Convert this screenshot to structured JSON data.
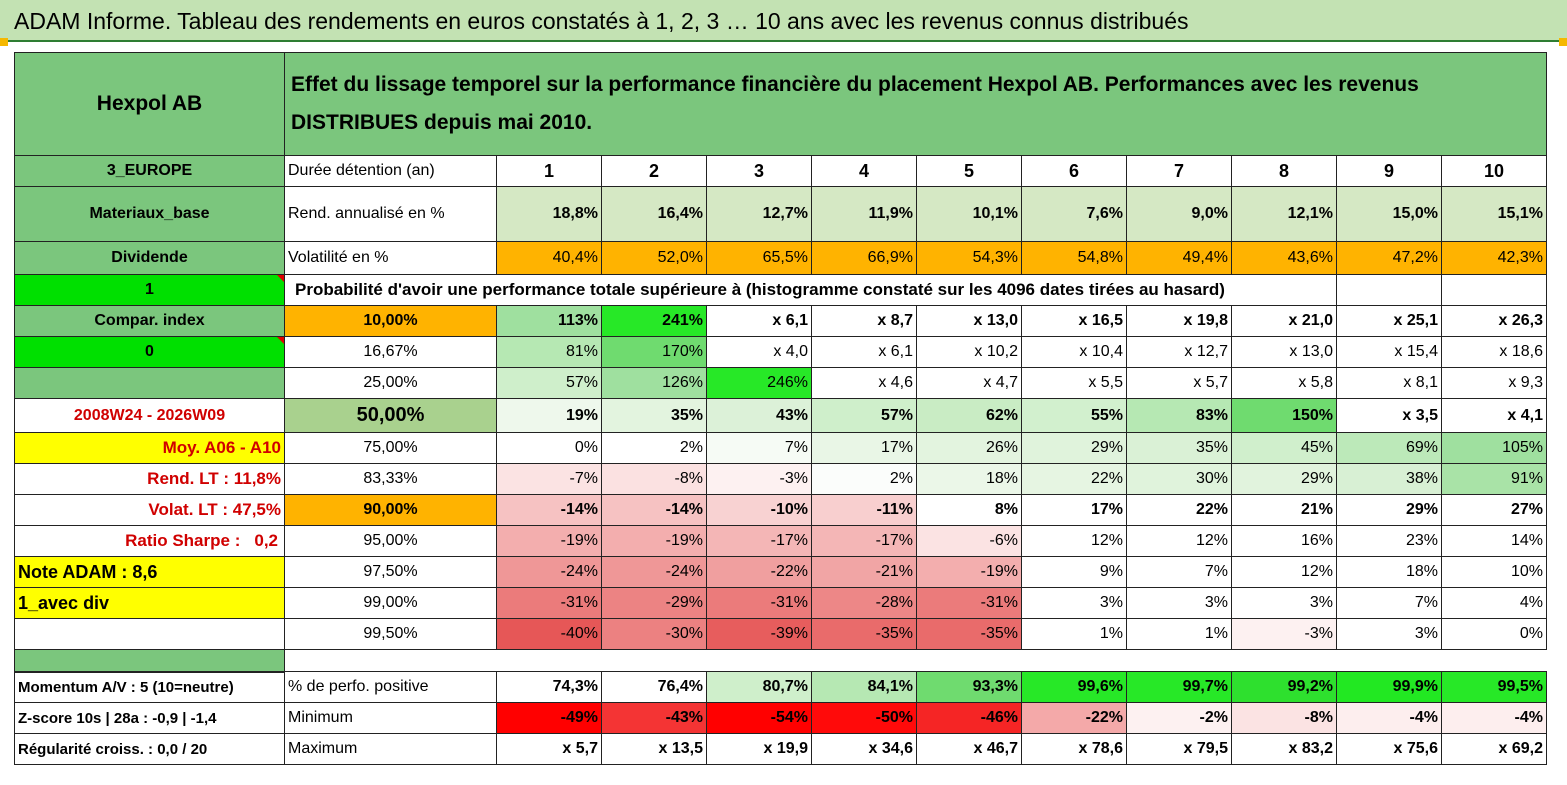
{
  "title": "ADAM Informe. Tableau des rendements en euros constatés à 1, 2, 3 … 10 ans avec les revenus connus distribués",
  "header": {
    "name": "Hexpol AB",
    "description": "Effet du lissage temporel sur la performance financière du placement Hexpol AB. Performances avec les revenus DISTRIBUES depuis mai 2010."
  },
  "labels": {
    "region": "3_EUROPE",
    "sector": "Materiaux_base",
    "type": "Dividende",
    "one": "1",
    "compar": "Compar. index",
    "zero": "0",
    "period": "2008W24 - 2026W09",
    "moy": "Moy. A06 - A10",
    "rend_lt": "Rend. LT :   11,8%",
    "volat_lt": "Volat. LT :   47,5%",
    "sharpe_label": "Ratio Sharpe :",
    "sharpe_value": "0,2",
    "note": "Note ADAM : 8,6",
    "avec_div": "1_avec div",
    "momentum": "Momentum A/V : 5 (10=neutre)",
    "zscore": "Z-score 10s | 28a : -0,9 | -1,4",
    "regularite": "Régularité croiss. : 0,0 / 20"
  },
  "rows": {
    "duree_label": "Durée détention (an)",
    "durations": [
      "1",
      "2",
      "3",
      "4",
      "5",
      "6",
      "7",
      "8",
      "9",
      "10"
    ],
    "rend_label": "Rend. annualisé en %",
    "rend": [
      "18,8%",
      "16,4%",
      "12,7%",
      "11,9%",
      "10,1%",
      "7,6%",
      "9,0%",
      "12,1%",
      "15,0%",
      "15,1%"
    ],
    "vol_label": "Volatilité en %",
    "vol": [
      "40,4%",
      "52,0%",
      "65,5%",
      "66,9%",
      "54,3%",
      "54,8%",
      "49,4%",
      "43,6%",
      "47,2%",
      "42,3%"
    ],
    "proba_header": "Probabilité d'avoir une performance totale supérieure à (histogramme constaté sur les 4096 dates tirées au hasard)"
  },
  "probabilities": [
    {
      "p": "10,00%",
      "v": [
        "113%",
        "241%",
        "x 6,1",
        "x 8,7",
        "x 13,0",
        "x 16,5",
        "x 19,8",
        "x 21,0",
        "x 25,1",
        "x 26,3"
      ]
    },
    {
      "p": "16,67%",
      "v": [
        "81%",
        "170%",
        "x 4,0",
        "x 6,1",
        "x 10,2",
        "x 10,4",
        "x 12,7",
        "x 13,0",
        "x 15,4",
        "x 18,6"
      ]
    },
    {
      "p": "25,00%",
      "v": [
        "57%",
        "126%",
        "246%",
        "x 4,6",
        "x 4,7",
        "x 5,5",
        "x 5,7",
        "x 5,8",
        "x 8,1",
        "x 9,3"
      ]
    },
    {
      "p": "50,00%",
      "v": [
        "19%",
        "35%",
        "43%",
        "57%",
        "62%",
        "55%",
        "83%",
        "150%",
        "x 3,5",
        "x 4,1"
      ]
    },
    {
      "p": "75,00%",
      "v": [
        "0%",
        "2%",
        "7%",
        "17%",
        "26%",
        "29%",
        "35%",
        "45%",
        "69%",
        "105%"
      ]
    },
    {
      "p": "83,33%",
      "v": [
        "-7%",
        "-8%",
        "-3%",
        "2%",
        "18%",
        "22%",
        "30%",
        "29%",
        "38%",
        "91%"
      ]
    },
    {
      "p": "90,00%",
      "v": [
        "-14%",
        "-14%",
        "-10%",
        "-11%",
        "8%",
        "17%",
        "22%",
        "21%",
        "29%",
        "27%"
      ]
    },
    {
      "p": "95,00%",
      "v": [
        "-19%",
        "-19%",
        "-17%",
        "-17%",
        "-6%",
        "12%",
        "12%",
        "16%",
        "23%",
        "14%"
      ]
    },
    {
      "p": "97,50%",
      "v": [
        "-24%",
        "-24%",
        "-22%",
        "-21%",
        "-19%",
        "9%",
        "7%",
        "12%",
        "18%",
        "10%"
      ]
    },
    {
      "p": "99,00%",
      "v": [
        "-31%",
        "-29%",
        "-31%",
        "-28%",
        "-31%",
        "3%",
        "3%",
        "3%",
        "7%",
        "4%"
      ]
    },
    {
      "p": "99,50%",
      "v": [
        "-40%",
        "-30%",
        "-39%",
        "-35%",
        "-35%",
        "1%",
        "1%",
        "-3%",
        "3%",
        "0%"
      ]
    }
  ],
  "stats": [
    {
      "label": "% de perfo. positive",
      "v": [
        "74,3%",
        "76,4%",
        "80,7%",
        "84,1%",
        "93,3%",
        "99,6%",
        "99,7%",
        "99,2%",
        "99,9%",
        "99,5%"
      ]
    },
    {
      "label": "Minimum",
      "v": [
        "-49%",
        "-43%",
        "-54%",
        "-50%",
        "-46%",
        "-22%",
        "-2%",
        "-8%",
        "-4%",
        "-4%"
      ]
    },
    {
      "label": "Maximum",
      "v": [
        "x 5,7",
        "x 13,5",
        "x 19,9",
        "x 34,6",
        "x 46,7",
        "x 78,6",
        "x 79,5",
        "x 83,2",
        "x 75,6",
        "x 69,2"
      ]
    }
  ]
}
